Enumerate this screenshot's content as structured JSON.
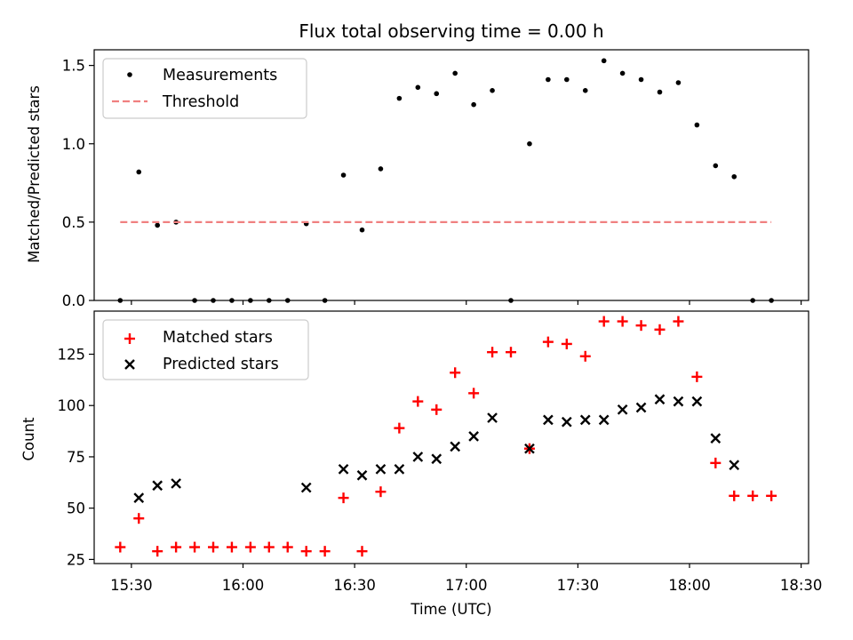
{
  "figure": {
    "background": "#ffffff"
  },
  "chart_data": [
    {
      "type": "scatter",
      "title": "Flux total observing time = 0.00 h",
      "xlabel": "",
      "ylabel": "Matched/Predicted stars",
      "xlim": [
        "15:20",
        "18:32"
      ],
      "ylim": [
        0,
        1.6
      ],
      "yticks": [
        {
          "value": 0,
          "label": "0.0"
        },
        {
          "value": 0.5,
          "label": "0.5"
        },
        {
          "value": 1.0,
          "label": "1.0"
        },
        {
          "value": 1.5,
          "label": "1.5"
        }
      ],
      "legend": {
        "position": "upper-left"
      },
      "series": [
        {
          "name": "Measurements",
          "kind": "points",
          "color": "#000000",
          "x": [
            "15:27",
            "15:32",
            "15:37",
            "15:42",
            "15:47",
            "15:52",
            "15:57",
            "16:02",
            "16:07",
            "16:12",
            "16:17",
            "16:22",
            "16:27",
            "16:32",
            "16:37",
            "16:42",
            "16:47",
            "16:52",
            "16:57",
            "17:02",
            "17:07",
            "17:12",
            "17:17",
            "17:22",
            "17:27",
            "17:32",
            "17:37",
            "17:42",
            "17:47",
            "17:52",
            "17:57",
            "18:02",
            "18:07",
            "18:12",
            "18:17",
            "18:22"
          ],
          "y": [
            0.0,
            0.82,
            0.48,
            0.5,
            0.0,
            0.0,
            0.0,
            0.0,
            0.0,
            0.0,
            0.49,
            0.0,
            0.8,
            0.45,
            0.84,
            1.29,
            1.36,
            1.32,
            1.45,
            1.25,
            1.34,
            0.0,
            1.0,
            1.41,
            1.41,
            1.34,
            1.53,
            1.45,
            1.41,
            1.33,
            1.39,
            1.12,
            0.86,
            0.79,
            0.0,
            0.0
          ]
        },
        {
          "name": "Threshold",
          "kind": "dashed-line",
          "color": "#f08080",
          "x": [
            "15:27",
            "18:22"
          ],
          "y": [
            0.5,
            0.5
          ]
        }
      ]
    },
    {
      "type": "scatter",
      "title": "",
      "xlabel": "Time (UTC)",
      "ylabel": "Count",
      "xlim": [
        "15:20",
        "18:32"
      ],
      "ylim": [
        23,
        146
      ],
      "yticks": [
        {
          "value": 25,
          "label": "25"
        },
        {
          "value": 50,
          "label": "50"
        },
        {
          "value": 75,
          "label": "75"
        },
        {
          "value": 100,
          "label": "100"
        },
        {
          "value": 125,
          "label": "125"
        }
      ],
      "xticks": [
        {
          "value": "15:30",
          "label": "15:30"
        },
        {
          "value": "16:00",
          "label": "16:00"
        },
        {
          "value": "16:30",
          "label": "16:30"
        },
        {
          "value": "17:00",
          "label": "17:00"
        },
        {
          "value": "17:30",
          "label": "17:30"
        },
        {
          "value": "18:00",
          "label": "18:00"
        },
        {
          "value": "18:30",
          "label": "18:30"
        }
      ],
      "legend": {
        "position": "upper-left"
      },
      "series": [
        {
          "name": "Matched stars",
          "kind": "plus",
          "color": "#ff0000",
          "x": [
            "15:27",
            "15:32",
            "15:37",
            "15:42",
            "15:47",
            "15:52",
            "15:57",
            "16:02",
            "16:07",
            "16:12",
            "16:17",
            "16:22",
            "16:27",
            "16:32",
            "16:37",
            "16:42",
            "16:47",
            "16:52",
            "16:57",
            "17:02",
            "17:07",
            "17:12",
            "17:17",
            "17:22",
            "17:27",
            "17:32",
            "17:37",
            "17:42",
            "17:47",
            "17:52",
            "17:57",
            "18:02",
            "18:07",
            "18:12",
            "18:17",
            "18:22"
          ],
          "y": [
            31,
            45,
            29,
            31,
            31,
            31,
            31,
            31,
            31,
            31,
            29,
            29,
            55,
            29,
            58,
            89,
            102,
            98,
            116,
            106,
            126,
            126,
            79,
            131,
            130,
            124,
            141,
            141,
            139,
            137,
            141,
            114,
            72,
            56,
            56,
            56
          ]
        },
        {
          "name": "Predicted stars",
          "kind": "x",
          "color": "#000000",
          "x": [
            "15:32",
            "15:37",
            "15:42",
            "16:17",
            "16:27",
            "16:32",
            "16:37",
            "16:42",
            "16:47",
            "16:52",
            "16:57",
            "17:02",
            "17:07",
            "17:17",
            "17:22",
            "17:27",
            "17:32",
            "17:37",
            "17:42",
            "17:47",
            "17:52",
            "17:57",
            "18:02",
            "18:07",
            "18:12"
          ],
          "y": [
            55,
            61,
            62,
            60,
            69,
            66,
            69,
            69,
            75,
            74,
            80,
            85,
            94,
            79,
            93,
            92,
            93,
            93,
            98,
            99,
            103,
            102,
            102,
            84,
            71
          ]
        }
      ]
    }
  ]
}
